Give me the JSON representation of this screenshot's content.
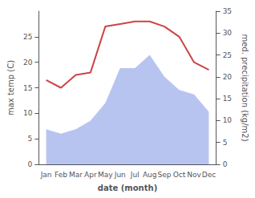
{
  "chart_data": {
    "type": "line",
    "xlabel": "date (month)",
    "ylabel": "max temp (C)",
    "y2label": "med. precipitation (kg/m2)",
    "categories": [
      "Jan",
      "Feb",
      "Mar",
      "Apr",
      "May",
      "Jun",
      "Jul",
      "Aug",
      "Sep",
      "Oct",
      "Nov",
      "Dec"
    ],
    "series": [
      {
        "type": "area",
        "axis": "y2",
        "color": "#b8c4f0",
        "values": [
          8.0,
          7.0,
          8.0,
          10.0,
          14.0,
          22.0,
          22.0,
          25.0,
          20.0,
          17.0,
          16.0,
          12.0
        ]
      },
      {
        "type": "line",
        "color": "#cc4444",
        "values": [
          16.5,
          15.0,
          17.5,
          18.0,
          27.0,
          27.5,
          28.0,
          28.0,
          27.0,
          25.0,
          20.0,
          18.5
        ]
      }
    ],
    "ylim": [
      0,
      30
    ],
    "yticks": [
      0,
      5,
      10,
      15,
      20,
      25
    ],
    "y2lim": [
      0,
      35
    ],
    "y2ticks": [
      0,
      5,
      10,
      15,
      20,
      25,
      30,
      35
    ],
    "grid": false
  }
}
